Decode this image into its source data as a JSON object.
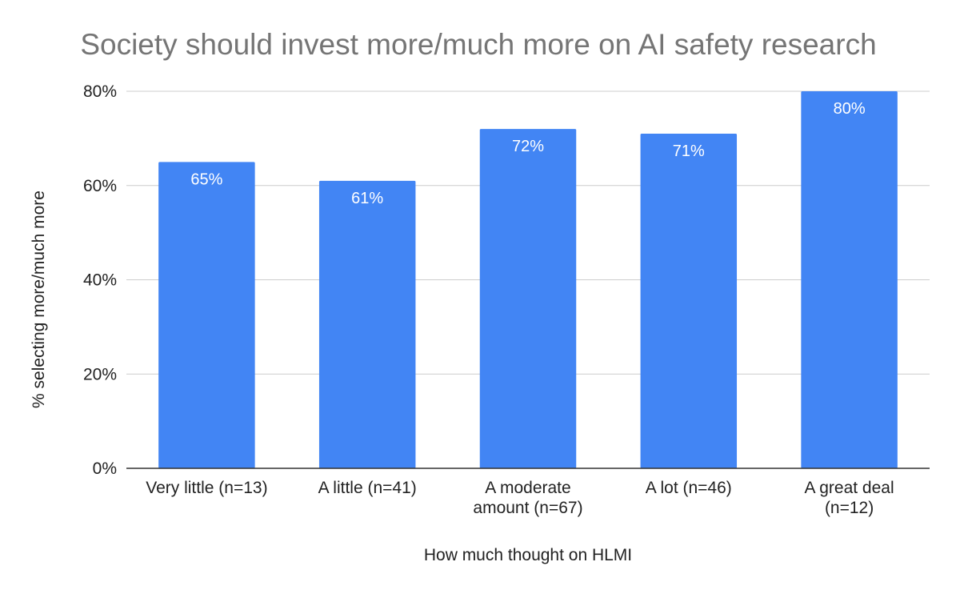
{
  "chart_data": {
    "type": "bar",
    "title": "Society should invest more/much more on AI safety research",
    "xlabel": "How much thought on HLMI",
    "ylabel": "% selecting more/much more",
    "categories": [
      [
        "Very little (n=13)"
      ],
      [
        "A little (n=41)"
      ],
      [
        "A moderate",
        "amount (n=67)"
      ],
      [
        "A lot (n=46)"
      ],
      [
        "A great deal",
        "(n=12)"
      ]
    ],
    "values": [
      65,
      61,
      72,
      71,
      80
    ],
    "data_labels": [
      "65%",
      "61%",
      "72%",
      "71%",
      "80%"
    ],
    "ylim": [
      0,
      80
    ],
    "yticks": [
      0,
      20,
      40,
      60,
      80
    ],
    "ytick_labels": [
      "0%",
      "20%",
      "40%",
      "60%",
      "80%"
    ],
    "grid": true,
    "legend": "none",
    "bar_color": "#4285f4"
  }
}
